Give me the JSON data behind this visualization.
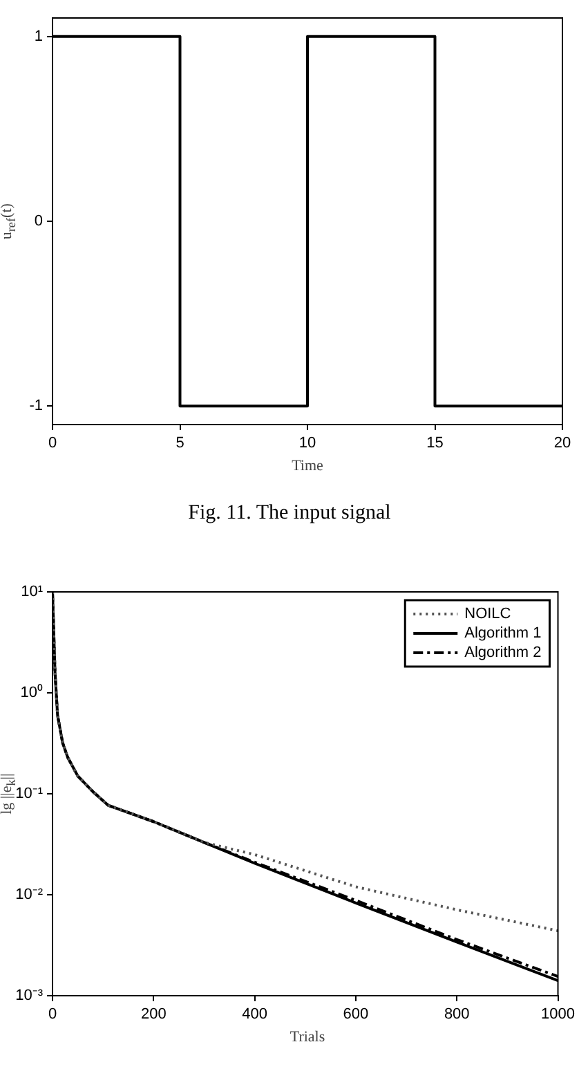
{
  "chart_data": [
    {
      "type": "step",
      "xlabel": "Time",
      "ylabel": "u$_{ref}$(t)",
      "x": [
        0,
        5,
        10,
        15,
        20
      ],
      "values": [
        1,
        -1,
        1,
        -1,
        -1
      ],
      "color": "#000000",
      "xlim": [
        0,
        20
      ],
      "xticks": [
        0,
        5,
        10,
        15,
        20
      ],
      "ylim": [
        -1.1,
        1.1
      ],
      "yticks": [
        -1,
        0,
        1
      ],
      "grid": false,
      "legend": false,
      "annotations": [
        "Fig. 11. The input signal"
      ]
    },
    {
      "type": "line",
      "xlabel": "Trials",
      "ylabel": "lg ||e$_{k}$||",
      "log": "y",
      "grid": false,
      "legend": "top right",
      "xlim": [
        0,
        1000
      ],
      "xticks": [
        0,
        200,
        400,
        600,
        800,
        1000
      ],
      "ylim": [
        0.001,
        10
      ],
      "yticks": [
        {
          "value": 0.001,
          "label": "10⁻³"
        },
        {
          "value": 0.01,
          "label": "10⁻²"
        },
        {
          "value": 0.1,
          "label": "10⁻¹"
        },
        {
          "value": 1,
          "label": "10⁰"
        },
        {
          "value": 10,
          "label": "10¹"
        }
      ],
      "x": [
        0,
        5,
        10,
        20,
        30,
        50,
        80,
        110,
        200,
        300,
        400,
        600,
        800,
        1000
      ],
      "series": [
        {
          "name": "NOILC",
          "color": "#555555",
          "line_style": "dotted",
          "values": [
            10,
            1.58,
            0.6,
            0.32,
            0.23,
            0.15,
            0.105,
            0.077,
            0.053,
            0.033,
            0.025,
            0.012,
            0.0071,
            0.0044
          ]
        },
        {
          "name": "Algorithm 1",
          "color": "#000000",
          "line_style": "solid",
          "values": [
            10,
            1.58,
            0.6,
            0.32,
            0.23,
            0.15,
            0.105,
            0.077,
            0.053,
            0.033,
            0.0205,
            0.0083,
            0.0034,
            0.00141
          ]
        },
        {
          "name": "Algorithm 2",
          "color": "#000000",
          "line_style": "dashed",
          "values": [
            10,
            1.58,
            0.6,
            0.32,
            0.23,
            0.15,
            0.105,
            0.077,
            0.053,
            0.033,
            0.021,
            0.0088,
            0.0036,
            0.00155
          ]
        }
      ]
    }
  ]
}
